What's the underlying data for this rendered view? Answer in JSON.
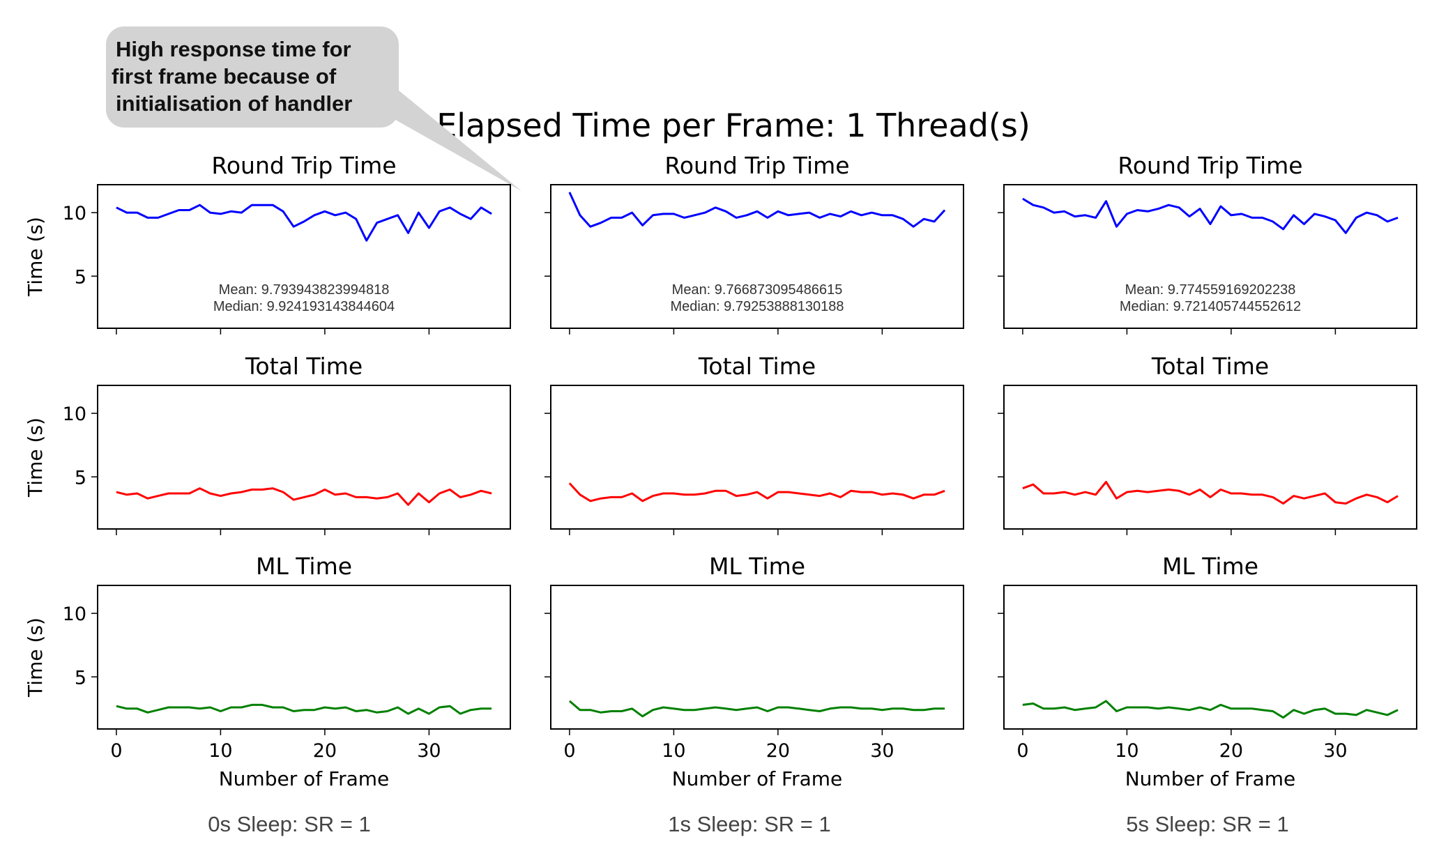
{
  "figure_title": "Elapsed Time per Frame: 1 Thread(s)",
  "annotation": [
    "High response time for",
    "first frame because of",
    "initialisation of handler"
  ],
  "captions": [
    "0s Sleep: SR = 1",
    "1s Sleep: SR = 1",
    "5s Sleep: SR = 1"
  ],
  "colors": {
    "round_trip": "#0000ff",
    "total": "#ff0000",
    "ml": "#008000"
  },
  "chart_data": [
    {
      "type": "line",
      "title": "Round Trip Time",
      "ylabel": "Time (s)",
      "xlabel": "",
      "ylim": [
        0.9,
        12.2
      ],
      "xlim": [
        -1.8,
        37.8
      ],
      "yticks": [
        5,
        10
      ],
      "xticks": [
        0,
        10,
        20,
        30
      ],
      "color": "#0000ff",
      "stats": [
        "Mean: 9.793943823994818",
        "Median: 9.924193143844604"
      ],
      "values": [
        10.4,
        10.0,
        10.0,
        9.6,
        9.6,
        9.9,
        10.2,
        10.2,
        10.6,
        10.0,
        9.9,
        10.1,
        10.0,
        10.6,
        10.6,
        10.6,
        10.1,
        8.9,
        9.3,
        9.8,
        10.1,
        9.8,
        10.0,
        9.5,
        7.8,
        9.2,
        9.5,
        9.8,
        8.4,
        10.0,
        8.8,
        10.1,
        10.4,
        9.9,
        9.5,
        10.4,
        9.9
      ]
    },
    {
      "type": "line",
      "title": "Round Trip Time",
      "ylabel": "",
      "xlabel": "",
      "ylim": [
        0.9,
        12.2
      ],
      "xlim": [
        -1.8,
        37.8
      ],
      "yticks": [
        5,
        10
      ],
      "xticks": [
        0,
        10,
        20,
        30
      ],
      "color": "#0000ff",
      "stats": [
        "Mean: 9.766873095486615",
        "Median: 9.79253888130188"
      ],
      "values": [
        11.6,
        9.8,
        8.9,
        9.2,
        9.6,
        9.6,
        10.0,
        9.0,
        9.8,
        9.9,
        9.9,
        9.6,
        9.8,
        10.0,
        10.4,
        10.1,
        9.6,
        9.8,
        10.1,
        9.6,
        10.1,
        9.8,
        9.9,
        10.0,
        9.6,
        9.9,
        9.7,
        10.1,
        9.8,
        10.0,
        9.8,
        9.8,
        9.5,
        8.9,
        9.5,
        9.3,
        10.2
      ]
    },
    {
      "type": "line",
      "title": "Round Trip Time",
      "ylabel": "",
      "xlabel": "",
      "ylim": [
        0.9,
        12.2
      ],
      "xlim": [
        -1.8,
        37.8
      ],
      "yticks": [
        5,
        10
      ],
      "xticks": [
        0,
        10,
        20,
        30
      ],
      "color": "#0000ff",
      "stats": [
        "Mean: 9.774559169202238",
        "Median: 9.721405744552612"
      ],
      "values": [
        11.1,
        10.6,
        10.4,
        10.0,
        10.1,
        9.7,
        9.8,
        9.6,
        10.9,
        8.9,
        9.9,
        10.2,
        10.1,
        10.3,
        10.6,
        10.4,
        9.7,
        10.3,
        9.1,
        10.5,
        9.8,
        9.9,
        9.6,
        9.6,
        9.3,
        8.7,
        9.8,
        9.1,
        9.9,
        9.7,
        9.4,
        8.4,
        9.6,
        10.0,
        9.8,
        9.3,
        9.6
      ]
    },
    {
      "type": "line",
      "title": "Total Time",
      "ylabel": "Time (s)",
      "xlabel": "",
      "ylim": [
        0.9,
        12.2
      ],
      "xlim": [
        -1.8,
        37.8
      ],
      "yticks": [
        5,
        10
      ],
      "xticks": [
        0,
        10,
        20,
        30
      ],
      "color": "#ff0000",
      "values": [
        3.8,
        3.6,
        3.7,
        3.3,
        3.5,
        3.7,
        3.7,
        3.7,
        4.1,
        3.7,
        3.5,
        3.7,
        3.8,
        4.0,
        4.0,
        4.1,
        3.8,
        3.2,
        3.4,
        3.6,
        4.0,
        3.6,
        3.7,
        3.4,
        3.4,
        3.3,
        3.4,
        3.7,
        2.8,
        3.7,
        3.0,
        3.7,
        4.0,
        3.4,
        3.6,
        3.9,
        3.7
      ]
    },
    {
      "type": "line",
      "title": "Total Time",
      "ylabel": "",
      "xlabel": "",
      "ylim": [
        0.9,
        12.2
      ],
      "xlim": [
        -1.8,
        37.8
      ],
      "yticks": [
        5,
        10
      ],
      "xticks": [
        0,
        10,
        20,
        30
      ],
      "color": "#ff0000",
      "values": [
        4.5,
        3.6,
        3.1,
        3.3,
        3.4,
        3.4,
        3.7,
        3.1,
        3.5,
        3.7,
        3.7,
        3.6,
        3.6,
        3.7,
        3.9,
        3.9,
        3.5,
        3.6,
        3.8,
        3.3,
        3.8,
        3.8,
        3.7,
        3.6,
        3.5,
        3.7,
        3.4,
        3.9,
        3.8,
        3.8,
        3.6,
        3.7,
        3.6,
        3.3,
        3.6,
        3.6,
        3.9
      ]
    },
    {
      "type": "line",
      "title": "Total Time",
      "ylabel": "",
      "xlabel": "",
      "ylim": [
        0.9,
        12.2
      ],
      "xlim": [
        -1.8,
        37.8
      ],
      "yticks": [
        5,
        10
      ],
      "xticks": [
        0,
        10,
        20,
        30
      ],
      "color": "#ff0000",
      "values": [
        4.1,
        4.4,
        3.7,
        3.7,
        3.8,
        3.6,
        3.8,
        3.6,
        4.6,
        3.3,
        3.8,
        3.9,
        3.8,
        3.9,
        4.0,
        3.9,
        3.6,
        4.0,
        3.4,
        4.0,
        3.7,
        3.7,
        3.6,
        3.6,
        3.4,
        2.9,
        3.5,
        3.3,
        3.5,
        3.7,
        3.0,
        2.9,
        3.3,
        3.6,
        3.4,
        3.0,
        3.5
      ]
    },
    {
      "type": "line",
      "title": "ML Time",
      "ylabel": "Time (s)",
      "xlabel": "Number of Frame",
      "ylim": [
        0.9,
        12.2
      ],
      "xlim": [
        -1.8,
        37.8
      ],
      "yticks": [
        5,
        10
      ],
      "xticks": [
        0,
        10,
        20,
        30
      ],
      "color": "#008000",
      "values": [
        2.7,
        2.5,
        2.5,
        2.2,
        2.4,
        2.6,
        2.6,
        2.6,
        2.5,
        2.6,
        2.3,
        2.6,
        2.6,
        2.8,
        2.8,
        2.6,
        2.6,
        2.3,
        2.4,
        2.4,
        2.6,
        2.5,
        2.6,
        2.3,
        2.4,
        2.2,
        2.3,
        2.6,
        2.1,
        2.5,
        2.1,
        2.6,
        2.7,
        2.1,
        2.4,
        2.5,
        2.5
      ]
    },
    {
      "type": "line",
      "title": "ML Time",
      "ylabel": "",
      "xlabel": "Number of Frame",
      "ylim": [
        0.9,
        12.2
      ],
      "xlim": [
        -1.8,
        37.8
      ],
      "yticks": [
        5,
        10
      ],
      "xticks": [
        0,
        10,
        20,
        30
      ],
      "color": "#008000",
      "values": [
        3.1,
        2.4,
        2.4,
        2.2,
        2.3,
        2.3,
        2.5,
        1.9,
        2.4,
        2.6,
        2.5,
        2.4,
        2.4,
        2.5,
        2.6,
        2.5,
        2.4,
        2.5,
        2.6,
        2.3,
        2.6,
        2.6,
        2.5,
        2.4,
        2.3,
        2.5,
        2.6,
        2.6,
        2.5,
        2.5,
        2.4,
        2.5,
        2.5,
        2.4,
        2.4,
        2.5,
        2.5
      ]
    },
    {
      "type": "line",
      "title": "ML Time",
      "ylabel": "",
      "xlabel": "Number of Frame",
      "ylim": [
        0.9,
        12.2
      ],
      "xlim": [
        -1.8,
        37.8
      ],
      "yticks": [
        5,
        10
      ],
      "xticks": [
        0,
        10,
        20,
        30
      ],
      "color": "#008000",
      "values": [
        2.8,
        2.9,
        2.5,
        2.5,
        2.6,
        2.4,
        2.5,
        2.6,
        3.1,
        2.3,
        2.6,
        2.6,
        2.6,
        2.5,
        2.6,
        2.5,
        2.4,
        2.6,
        2.4,
        2.8,
        2.5,
        2.5,
        2.5,
        2.4,
        2.3,
        1.8,
        2.4,
        2.1,
        2.4,
        2.5,
        2.1,
        2.1,
        2.0,
        2.4,
        2.2,
        2.0,
        2.4
      ]
    }
  ]
}
